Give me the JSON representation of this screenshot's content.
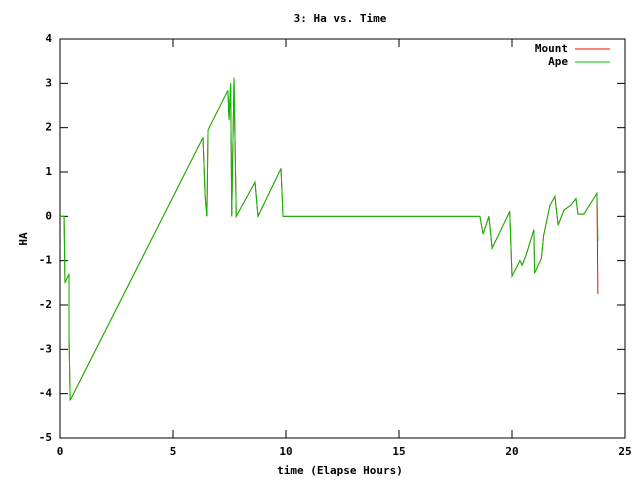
{
  "chart_data": {
    "type": "line",
    "title": "3: Ha vs. Time",
    "x_label": "time (Elapse Hours)",
    "y_label": "HA",
    "x": [
      0,
      0.18,
      0.22,
      0.4,
      0.4,
      0.45,
      6.33,
      6.42,
      6.5,
      6.55,
      6.65,
      7.43,
      7.48,
      7.55,
      7.6,
      7.7,
      7.8,
      8.63,
      8.76,
      9.78,
      9.87,
      18.58,
      18.72,
      18.98,
      19.12,
      19.9,
      20.0,
      20.35,
      20.45,
      20.62,
      20.97,
      21.0,
      21.3,
      21.4,
      21.68,
      21.9,
      22.04,
      22.3,
      22.6,
      22.83,
      22.92,
      23.18,
      23.76,
      23.8
    ],
    "series": [
      {
        "name": "Mount",
        "color": "#ff0000",
        "values": [
          0,
          0,
          -1.5,
          -1.3,
          -2.75,
          -4.15,
          1.78,
          0.47,
          0,
          1.94,
          2.05,
          2.84,
          2.17,
          3.0,
          0,
          3.13,
          0,
          0.77,
          0,
          1.08,
          0,
          0,
          -0.4,
          0,
          -0.72,
          0.11,
          -1.35,
          -1.0,
          -1.1,
          -0.88,
          -0.3,
          -1.28,
          -0.95,
          -0.43,
          0.25,
          0.45,
          -0.2,
          0.14,
          0.25,
          0.4,
          0.05,
          0.05,
          0.52,
          -1.75
        ]
      },
      {
        "name": "Ape",
        "color": "#00c000",
        "values": [
          0,
          0,
          -1.5,
          -1.3,
          -2.75,
          -4.15,
          1.78,
          0.47,
          0,
          1.94,
          2.05,
          2.84,
          2.17,
          3.0,
          0,
          3.13,
          0,
          0.77,
          0,
          1.08,
          0,
          0,
          -0.4,
          0,
          -0.72,
          0.11,
          -1.35,
          -1.0,
          -1.1,
          -0.88,
          -0.3,
          -1.28,
          -0.95,
          -0.43,
          0.25,
          0.45,
          -0.2,
          0.14,
          0.25,
          0.4,
          0.05,
          0.05,
          0.52,
          -0.55
        ]
      }
    ],
    "xlim": [
      0,
      25
    ],
    "xticks": [
      0,
      5,
      10,
      15,
      20,
      25
    ],
    "ylim": [
      -5,
      4
    ],
    "yticks": [
      -5,
      -4,
      -3,
      -2,
      -1,
      0,
      1,
      2,
      3,
      4
    ],
    "legend": "top-right"
  }
}
